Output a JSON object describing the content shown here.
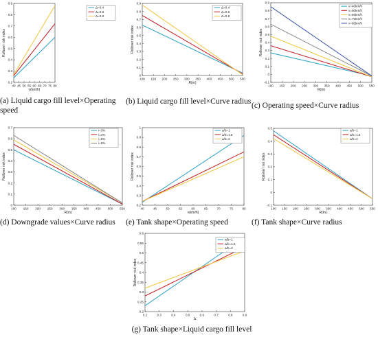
{
  "colors": {
    "c1": "#3aa6c9",
    "c2": "#c0262c",
    "c3": "#f2c94c",
    "c4": "#8a8a8a",
    "c5": "#3f5aa9"
  },
  "chart_data": [
    {
      "id": "a",
      "type": "line",
      "caption": "(a) Liquid cargo fill level×Operating speed",
      "xlabel": "v(km/h)",
      "ylabel": "Rollover risk index",
      "xlim": [
        40,
        80
      ],
      "ylim": [
        0.2,
        0.9
      ],
      "xticks": [
        40,
        45,
        50,
        55,
        60,
        65,
        70,
        75,
        80
      ],
      "yticks": [
        0.2,
        0.3,
        0.4,
        0.5,
        0.6,
        0.7,
        0.8,
        0.9
      ],
      "grid": false,
      "legend": "top-right",
      "x": [
        40,
        80
      ],
      "series": [
        {
          "name": "Δ=0.4",
          "values": [
            0.24,
            0.6
          ],
          "color": "c1"
        },
        {
          "name": "Δ=0.6",
          "values": [
            0.26,
            0.72
          ],
          "color": "c2"
        },
        {
          "name": "Δ=0.8",
          "values": [
            0.27,
            0.88
          ],
          "color": "c3"
        }
      ]
    },
    {
      "id": "b",
      "type": "line",
      "caption": "(b) Liquid cargo fill level×Curve radius",
      "xlabel": "R(m)",
      "ylabel": "Rollover risk index",
      "xlim": [
        100,
        550
      ],
      "ylim": [
        0,
        0.9
      ],
      "xticks": [
        100,
        150,
        200,
        250,
        300,
        350,
        400,
        450,
        500,
        550
      ],
      "yticks": [
        0,
        0.1,
        0.2,
        0.3,
        0.4,
        0.5,
        0.6,
        0.7,
        0.8,
        0.9
      ],
      "grid": false,
      "legend": "top-right",
      "x": [
        100,
        550
      ],
      "series": [
        {
          "name": "Δ=0.4",
          "values": [
            0.63,
            0.03
          ],
          "color": "c1"
        },
        {
          "name": "Δ=0.6",
          "values": [
            0.75,
            0.02
          ],
          "color": "c2"
        },
        {
          "name": "Δ=0.8",
          "values": [
            0.88,
            0.01
          ],
          "color": "c3"
        }
      ]
    },
    {
      "id": "c",
      "type": "line",
      "caption": "(c) Operating speed×Curve radius",
      "xlabel": "R(m)",
      "ylabel": "Rollover risk index",
      "xlim": [
        100,
        550
      ],
      "ylim": [
        -0.1,
        0.9
      ],
      "xticks": [
        100,
        150,
        200,
        250,
        300,
        350,
        400,
        450,
        500,
        550
      ],
      "yticks": [
        -0.1,
        0,
        0.1,
        0.2,
        0.3,
        0.4,
        0.5,
        0.6,
        0.7,
        0.8,
        0.9
      ],
      "grid": false,
      "legend": "top-right",
      "x": [
        100,
        550
      ],
      "series": [
        {
          "name": "v=40km/h",
          "values": [
            0.27,
            -0.02
          ],
          "color": "c1"
        },
        {
          "name": "v=50km/h",
          "values": [
            0.36,
            -0.03
          ],
          "color": "c2"
        },
        {
          "name": "v=60km/h",
          "values": [
            0.48,
            -0.03
          ],
          "color": "c3"
        },
        {
          "name": "v=70km/h",
          "values": [
            0.63,
            -0.02
          ],
          "color": "c4"
        },
        {
          "name": "v=80km/h",
          "values": [
            0.85,
            -0.02
          ],
          "color": "c5"
        }
      ]
    },
    {
      "id": "d",
      "type": "line",
      "caption": "(d) Downgrade values×Curve radius",
      "xlabel": "R(m)",
      "ylabel": "Rollover risk index",
      "xlim": [
        100,
        550
      ],
      "ylim": [
        0,
        0.7
      ],
      "xticks": [
        100,
        150,
        200,
        250,
        300,
        350,
        400,
        450,
        500,
        550
      ],
      "yticks": [
        0,
        0.1,
        0.2,
        0.3,
        0.4,
        0.5,
        0.6,
        0.7
      ],
      "grid": false,
      "legend": "top-right",
      "x": [
        100,
        550
      ],
      "series": [
        {
          "name": "i=3%",
          "values": [
            0.5,
            0.01
          ],
          "color": "c1"
        },
        {
          "name": "i=4%",
          "values": [
            0.55,
            0.01
          ],
          "color": "c2"
        },
        {
          "name": "i=5%",
          "values": [
            0.59,
            0.02
          ],
          "color": "c3"
        },
        {
          "name": "i=6%",
          "values": [
            0.63,
            0.02
          ],
          "color": "c4"
        }
      ]
    },
    {
      "id": "e",
      "type": "line",
      "caption": "(e) Tank shape×Operating speed",
      "xlabel": "v(km/h)",
      "ylabel": "Rollover risk index",
      "xlim": [
        40,
        80
      ],
      "ylim": [
        0.2,
        1.0
      ],
      "xticks": [
        40,
        45,
        50,
        55,
        60,
        65,
        70,
        75,
        80
      ],
      "yticks": [
        0.2,
        0.3,
        0.4,
        0.5,
        0.6,
        0.7,
        0.8,
        0.9,
        1
      ],
      "grid": false,
      "legend": "top-left",
      "x": [
        40,
        80
      ],
      "series": [
        {
          "name": "a/b=1",
          "values": [
            0.23,
            0.92
          ],
          "color": "c1"
        },
        {
          "name": "a/b=1.5",
          "values": [
            0.24,
            0.75
          ],
          "color": "c2"
        },
        {
          "name": "a/b=2",
          "values": [
            0.24,
            0.7
          ],
          "color": "c3"
        }
      ]
    },
    {
      "id": "f",
      "type": "line",
      "caption": "(f) Tank shape×Curve radius",
      "xlabel": "R(m)",
      "ylabel": "Rollover risk index",
      "xlim": [
        100,
        550
      ],
      "ylim": [
        -0.1,
        0.5
      ],
      "xticks": [
        100,
        150,
        200,
        250,
        300,
        350,
        400,
        450,
        500,
        550
      ],
      "yticks": [
        -0.1,
        0,
        0.1,
        0.2,
        0.3,
        0.4,
        0.5
      ],
      "grid": false,
      "legend": "top-right",
      "x": [
        100,
        550
      ],
      "series": [
        {
          "name": "a/b=1",
          "values": [
            0.48,
            -0.05
          ],
          "color": "c1"
        },
        {
          "name": "a/b=1.5",
          "values": [
            0.45,
            -0.05
          ],
          "color": "c2"
        },
        {
          "name": "a/b=2",
          "values": [
            0.42,
            -0.05
          ],
          "color": "c3"
        }
      ]
    },
    {
      "id": "g",
      "type": "line",
      "caption": "(g) Tank shape×Liquid cargo fill level",
      "xlabel": "Δ",
      "ylabel": "Rollover risk index",
      "xlim": [
        0.2,
        0.9
      ],
      "ylim": [
        0.2,
        0.6
      ],
      "xticks": [
        0.2,
        0.3,
        0.4,
        0.5,
        0.6,
        0.7,
        0.8,
        0.9
      ],
      "yticks": [
        0.2,
        0.25,
        0.3,
        0.35,
        0.4,
        0.45,
        0.5,
        0.55,
        0.6
      ],
      "grid": false,
      "legend": "top-left",
      "x": [
        0.2,
        0.9
      ],
      "series": [
        {
          "name": "a/b=1",
          "values": [
            0.23,
            0.58
          ],
          "color": "c1"
        },
        {
          "name": "a/b=1.5",
          "values": [
            0.28,
            0.53
          ],
          "color": "c2"
        },
        {
          "name": "a/b=2",
          "values": [
            0.32,
            0.51
          ],
          "color": "c3"
        }
      ]
    }
  ]
}
